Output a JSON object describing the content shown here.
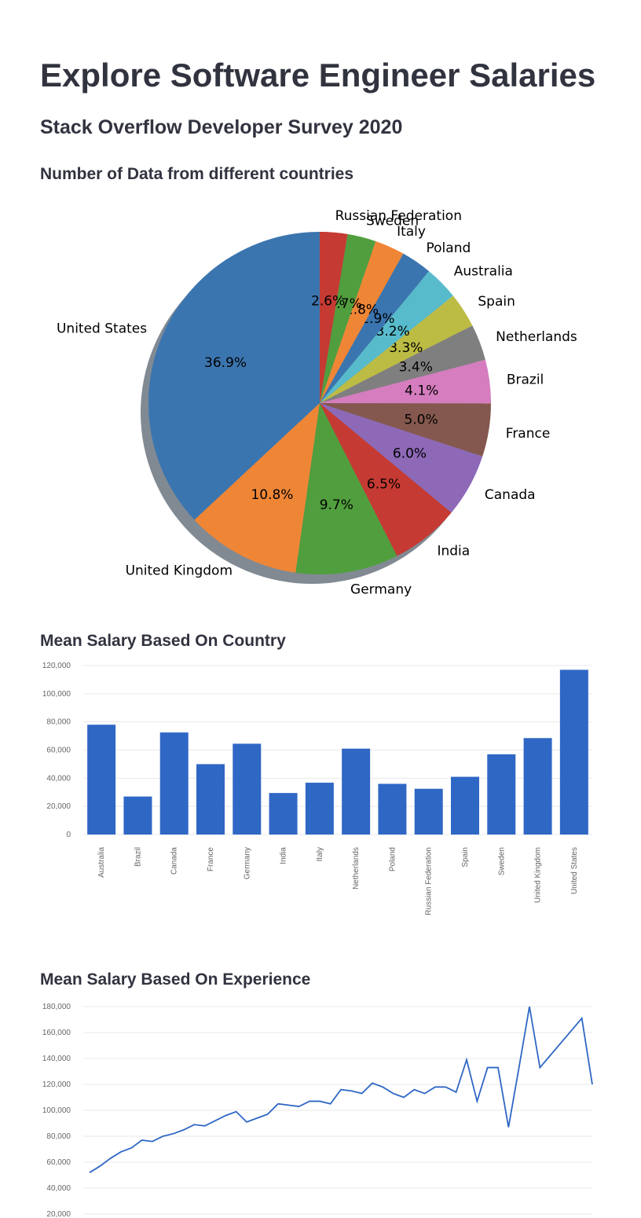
{
  "header": {
    "title": "Explore Software Engineer Salaries",
    "subtitle": "Stack Overflow Developer Survey 2020"
  },
  "chart_data": [
    {
      "type": "pie",
      "title": "Number of Data from different countries",
      "categories": [
        "United States",
        "United Kingdom",
        "Germany",
        "India",
        "Canada",
        "France",
        "Brazil",
        "Netherlands",
        "Spain",
        "Australia",
        "Poland",
        "Italy",
        "Sweden",
        "Russian Federation"
      ],
      "values": [
        36.9,
        10.8,
        9.7,
        6.5,
        6.0,
        5.0,
        4.1,
        3.4,
        3.3,
        3.2,
        2.9,
        2.8,
        2.7,
        2.6
      ],
      "value_labels": [
        "36.9%",
        "10.8%",
        "9.7%",
        "6.5%",
        "6.0%",
        "5.0%",
        "4.1%",
        "3.4%",
        "3.3%",
        "3.2%",
        "2.9%",
        "2.8%",
        "2.7%",
        "2.6%"
      ],
      "colors": [
        "#3b75af",
        "#ef8636",
        "#519e3e",
        "#c53a32",
        "#8d69b8",
        "#84584e",
        "#d57dbe",
        "#7f7f7f",
        "#bcbc45",
        "#58bbcc",
        "#3b75af",
        "#ef8636",
        "#519e3e",
        "#c53a32"
      ],
      "shadow": true
    },
    {
      "type": "bar",
      "title": "Mean Salary Based On Country",
      "categories": [
        "Australia",
        "Brazil",
        "Canada",
        "France",
        "Germany",
        "India",
        "Italy",
        "Netherlands",
        "Poland",
        "Russian Federation",
        "Spain",
        "Sweden",
        "United Kingdom",
        "United States"
      ],
      "values": [
        78000,
        27000,
        72500,
        50000,
        64500,
        29500,
        36800,
        61000,
        36000,
        32500,
        41000,
        57000,
        68500,
        117000
      ],
      "color": "#2f67c5",
      "ylim": [
        0,
        120000
      ],
      "yticks": [
        0,
        {
          "value": 20000,
          "label": "20,000"
        },
        {
          "value": 40000,
          "label": "40,000"
        },
        {
          "value": 60000,
          "label": "60,000"
        },
        {
          "value": 80000,
          "label": "80,000"
        },
        {
          "value": 100000,
          "label": "100,000"
        },
        {
          "value": 120000,
          "label": "120,000"
        }
      ],
      "grid": true
    },
    {
      "type": "line",
      "title": "Mean Salary Based On Experience",
      "values": [
        52000,
        57000,
        63000,
        68000,
        71000,
        77000,
        76000,
        80000,
        82000,
        85000,
        89000,
        88000,
        92000,
        96000,
        99000,
        91000,
        94000,
        97000,
        105000,
        104000,
        103000,
        107000,
        107000,
        105000,
        116000,
        115000,
        113000,
        121000,
        118000,
        113000,
        110000,
        116000,
        113000,
        118000,
        118000,
        114000,
        139000,
        107000,
        133000,
        133000,
        87000,
        133000,
        180000,
        133000,
        142500,
        152000,
        161500,
        171000,
        120000
      ],
      "color": "#2f67c5",
      "ylim": [
        20000,
        180000
      ],
      "yticks": [
        {
          "value": 20000,
          "label": "20,000"
        },
        {
          "value": 40000,
          "label": "40,000"
        },
        {
          "value": 60000,
          "label": "60,000"
        },
        {
          "value": 80000,
          "label": "80,000"
        },
        {
          "value": 100000,
          "label": "100,000"
        },
        {
          "value": 120000,
          "label": "120,000"
        },
        {
          "value": 140000,
          "label": "140,000"
        },
        {
          "value": 160000,
          "label": "160,000"
        },
        {
          "value": 180000,
          "label": "180,000"
        }
      ],
      "grid": true
    }
  ]
}
